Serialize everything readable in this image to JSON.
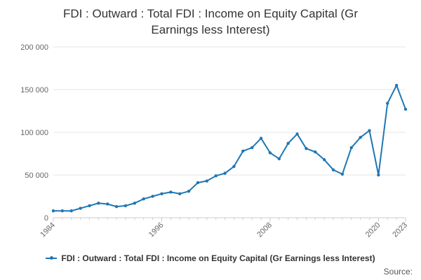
{
  "title_lines": [
    "FDI : Outward : Total FDI : Income on Equity Capital (Gr",
    "Earnings less Interest)"
  ],
  "source_label": "Source:",
  "colors": {
    "series": "#1f77b4",
    "grid": "#e6e6e6",
    "axis": "#cccccc",
    "text": "#666666"
  },
  "chart_data": {
    "type": "line",
    "title": "FDI : Outward : Total FDI : Income on Equity Capital (Gr Earnings less Interest)",
    "x_tick_labels": [
      "1984",
      "1996",
      "2008",
      "2020",
      "2023"
    ],
    "x_ticks": [
      1984,
      1996,
      2008,
      2020,
      2023
    ],
    "y_tick_labels": [
      "0",
      "50 000",
      "100 000",
      "150 000",
      "200 000"
    ],
    "y_ticks": [
      0,
      50000,
      100000,
      150000,
      200000
    ],
    "xlim": [
      1984,
      2023
    ],
    "ylim": [
      0,
      200000
    ],
    "grid": true,
    "legend": "bottom",
    "series": [
      {
        "name": "FDI : Outward : Total FDI : Income on Equity Capital (Gr Earnings less Interest)",
        "x": [
          1984,
          1985,
          1986,
          1987,
          1988,
          1989,
          1990,
          1991,
          1992,
          1993,
          1994,
          1995,
          1996,
          1997,
          1998,
          1999,
          2000,
          2001,
          2002,
          2003,
          2004,
          2005,
          2006,
          2007,
          2008,
          2009,
          2010,
          2011,
          2012,
          2013,
          2014,
          2015,
          2016,
          2017,
          2018,
          2019,
          2020,
          2021,
          2022,
          2023
        ],
        "values": [
          8000,
          8000,
          8000,
          11000,
          14000,
          17000,
          16000,
          13000,
          14000,
          17000,
          22000,
          25000,
          28000,
          30000,
          28000,
          31000,
          41000,
          43000,
          49000,
          52000,
          60000,
          78000,
          82000,
          93000,
          76000,
          69000,
          87000,
          98000,
          81000,
          77000,
          68000,
          56000,
          51000,
          82000,
          94000,
          102000,
          50000,
          134000,
          155000,
          127000
        ]
      }
    ]
  }
}
